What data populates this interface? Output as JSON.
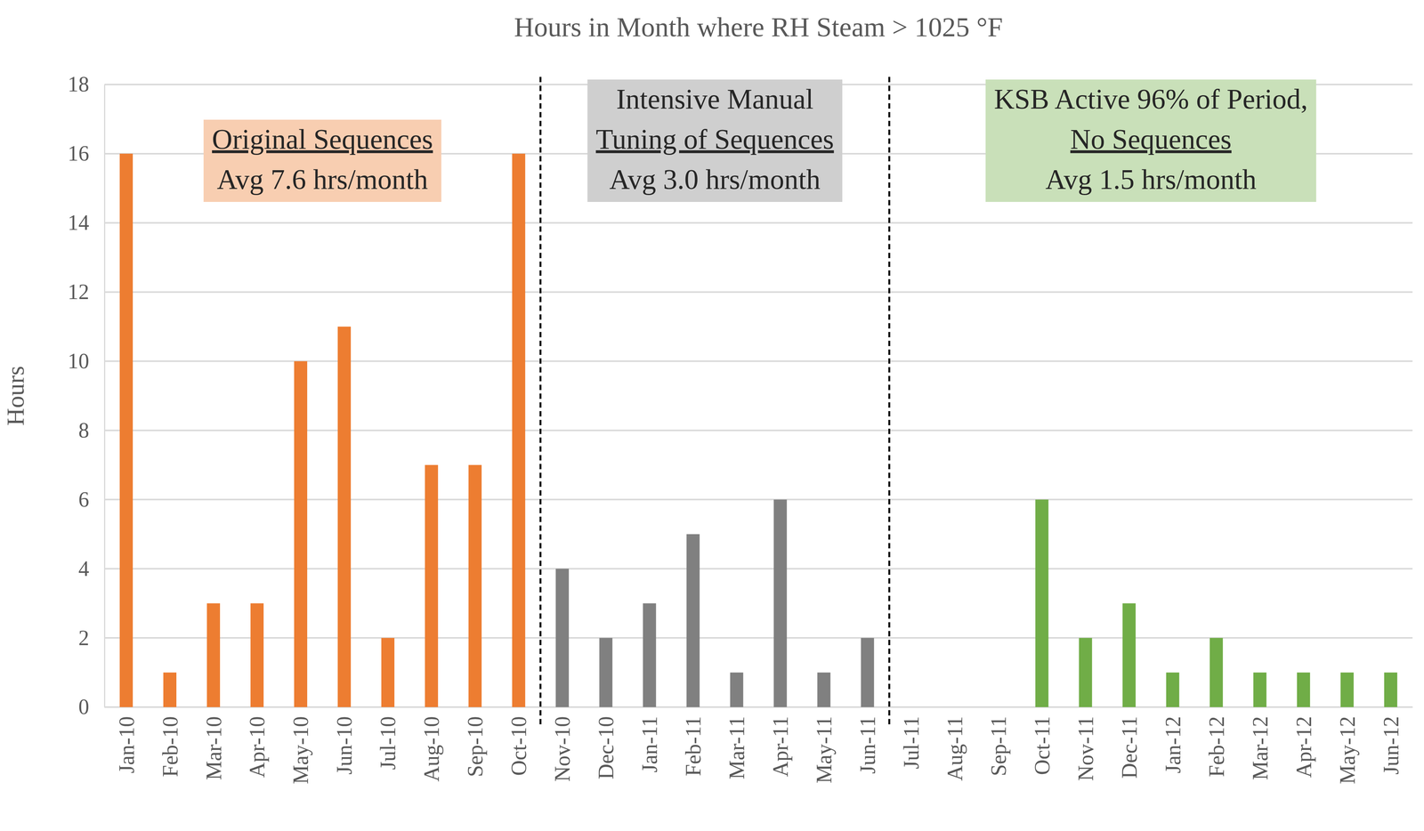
{
  "chart_data": {
    "type": "bar",
    "title": "Hours in Month where RH Steam > 1025 °F",
    "y_label": "Hours",
    "categories": [
      "Jan-10",
      "Feb-10",
      "Mar-10",
      "Apr-10",
      "May-10",
      "Jun-10",
      "Jul-10",
      "Aug-10",
      "Sep-10",
      "Oct-10",
      "Nov-10",
      "Dec-10",
      "Jan-11",
      "Feb-11",
      "Mar-11",
      "Apr-11",
      "May-11",
      "Jun-11",
      "Jul-11",
      "Aug-11",
      "Sep-11",
      "Oct-11",
      "Nov-11",
      "Dec-11",
      "Jan-12",
      "Feb-12",
      "Mar-12",
      "Apr-12",
      "May-12",
      "Jun-12"
    ],
    "values": [
      16,
      1,
      3,
      3,
      10,
      11,
      2,
      7,
      7,
      16,
      4,
      2,
      3,
      5,
      1,
      6,
      1,
      2,
      0,
      0,
      0,
      6,
      2,
      3,
      1,
      2,
      1,
      1,
      1,
      1
    ],
    "colors": [
      "#ed7d31",
      "#ed7d31",
      "#ed7d31",
      "#ed7d31",
      "#ed7d31",
      "#ed7d31",
      "#ed7d31",
      "#ed7d31",
      "#ed7d31",
      "#ed7d31",
      "#808080",
      "#808080",
      "#808080",
      "#808080",
      "#808080",
      "#808080",
      "#808080",
      "#808080",
      "#70ad47",
      "#70ad47",
      "#70ad47",
      "#70ad47",
      "#70ad47",
      "#70ad47",
      "#70ad47",
      "#70ad47",
      "#70ad47",
      "#70ad47",
      "#70ad47",
      "#70ad47"
    ],
    "ylim": [
      0,
      18
    ],
    "yticks": [
      0,
      2,
      4,
      6,
      8,
      10,
      12,
      14,
      16,
      18
    ],
    "grid": true,
    "annotations": [
      {
        "lines": [
          "Original Sequences",
          "Avg 7.6 hrs/month"
        ]
      },
      {
        "lines": [
          "Intensive Manual",
          "Tuning of Sequences",
          "Avg 3.0 hrs/month"
        ]
      },
      {
        "lines": [
          "KSB Active 96% of Period,",
          "No Sequences",
          "Avg 1.5 hrs/month"
        ]
      }
    ]
  }
}
